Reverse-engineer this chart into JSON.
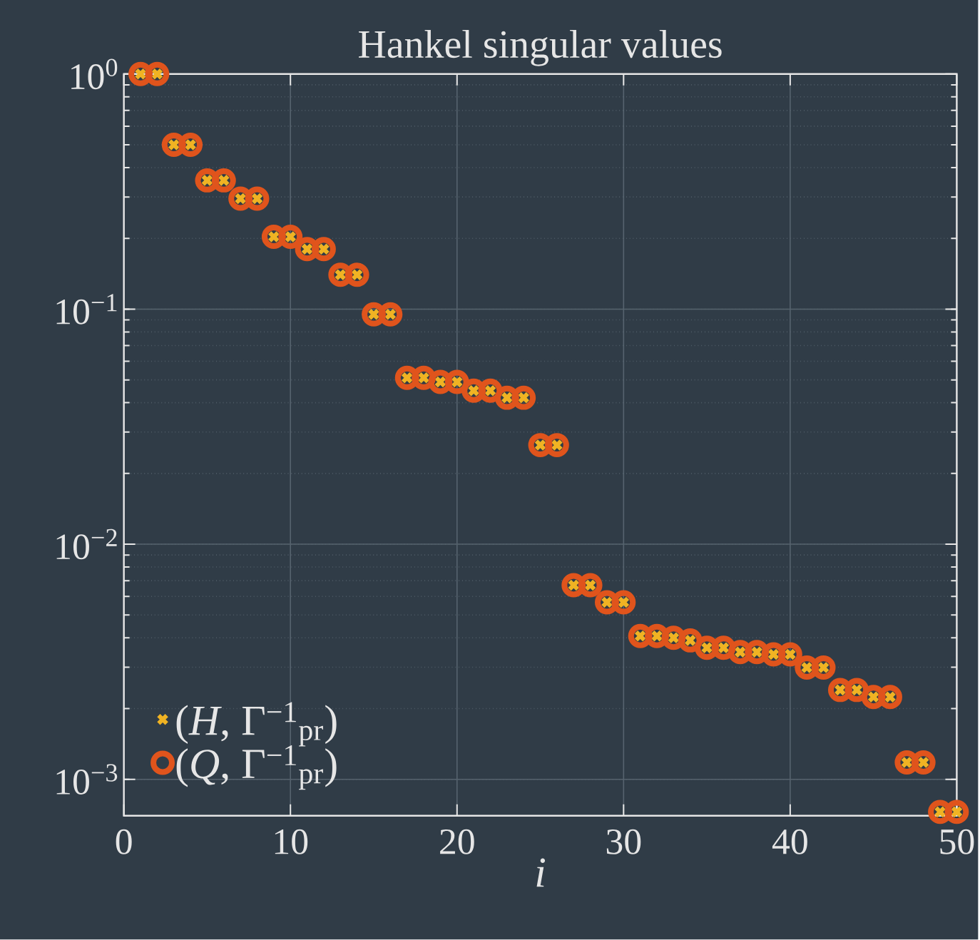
{
  "chart_data": {
    "type": "scatter",
    "title": "Hankel singular values",
    "xlabel": "i",
    "x": [
      1,
      2,
      3,
      4,
      5,
      6,
      7,
      8,
      9,
      10,
      11,
      12,
      13,
      14,
      15,
      16,
      17,
      18,
      19,
      20,
      21,
      22,
      23,
      24,
      25,
      26,
      27,
      28,
      29,
      30,
      31,
      32,
      33,
      34,
      35,
      36,
      37,
      38,
      39,
      40,
      41,
      42,
      43,
      44,
      45,
      46,
      47,
      48,
      49,
      50
    ],
    "series": [
      {
        "name": "(*H*, Γ$^{−1}$$_{pr}$)",
        "color": "#f0b323",
        "marker": "cross",
        "values": [
          1.0,
          1.0,
          0.5,
          0.5,
          0.353,
          0.353,
          0.295,
          0.295,
          0.203,
          0.203,
          0.18,
          0.18,
          0.14,
          0.14,
          0.095,
          0.095,
          0.051,
          0.051,
          0.049,
          0.049,
          0.045,
          0.045,
          0.042,
          0.042,
          0.0264,
          0.0264,
          0.0067,
          0.0067,
          0.00566,
          0.00566,
          0.00407,
          0.00407,
          0.004,
          0.0039,
          0.00363,
          0.00363,
          0.00348,
          0.00348,
          0.0034,
          0.0034,
          0.00299,
          0.00299,
          0.0024,
          0.0024,
          0.00224,
          0.00224,
          0.00118,
          0.00118,
          0.000727,
          0.000727
        ]
      },
      {
        "name": "(*Q*, Γ$^{−1}$$_{pr}$)",
        "color": "#e0541c",
        "marker": "circle",
        "values": [
          1.0,
          1.0,
          0.5,
          0.5,
          0.353,
          0.353,
          0.295,
          0.295,
          0.203,
          0.203,
          0.18,
          0.18,
          0.14,
          0.14,
          0.095,
          0.095,
          0.051,
          0.051,
          0.049,
          0.049,
          0.045,
          0.045,
          0.042,
          0.042,
          0.0264,
          0.0264,
          0.0067,
          0.0067,
          0.00566,
          0.00566,
          0.00407,
          0.00407,
          0.004,
          0.0039,
          0.00363,
          0.00363,
          0.00348,
          0.00348,
          0.0034,
          0.0034,
          0.00299,
          0.00299,
          0.0024,
          0.0024,
          0.00224,
          0.00224,
          0.00118,
          0.00118,
          0.000727,
          0.000727
        ]
      }
    ],
    "log": "y",
    "grid": true,
    "legend": "bottom left",
    "xlim": [
      0,
      50
    ],
    "xticks": [
      0,
      10,
      20,
      30,
      40,
      50
    ],
    "ylim": [
      0.0007,
      1
    ],
    "yticks": [
      {
        "value": 0.001,
        "label": "10$^{−3}$"
      },
      {
        "value": 0.01,
        "label": "10$^{−2}$"
      },
      {
        "value": 0.1,
        "label": "10$^{−1}$"
      },
      {
        "value": 1,
        "label": "10$^{0}$"
      }
    ]
  }
}
